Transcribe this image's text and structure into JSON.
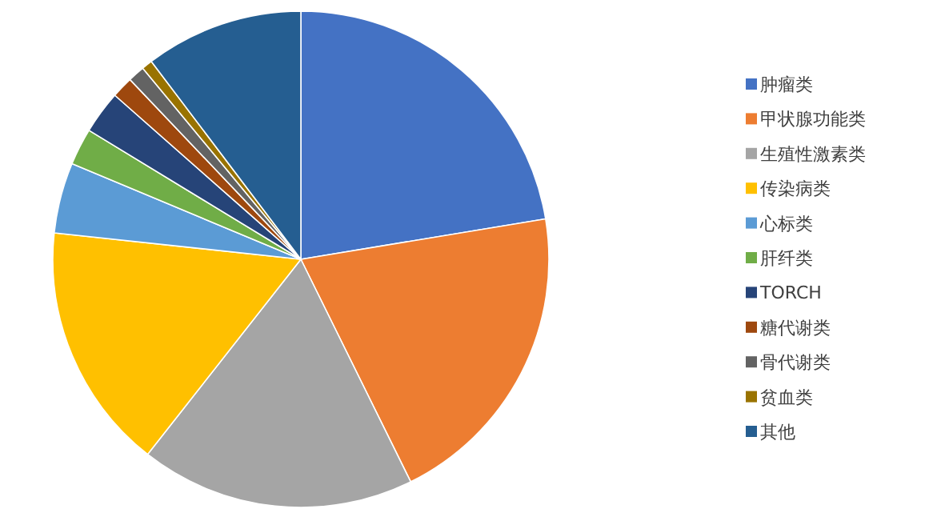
{
  "chart_data": {
    "type": "pie",
    "categories": [
      "肿瘤类",
      "甲状腺功能类",
      "生殖性激素类",
      "传染病类",
      "心标类",
      "肝纤类",
      "TORCH",
      "糖代谢类",
      "骨代谢类",
      "贫血类",
      "其他"
    ],
    "values": [
      22.4,
      20.3,
      17.9,
      16.1,
      4.6,
      2.4,
      2.8,
      1.4,
      1.1,
      0.7,
      10.3
    ],
    "colors": [
      "#4472c4",
      "#ed7d31",
      "#a5a5a5",
      "#ffc000",
      "#5b9bd5",
      "#70ad47",
      "#264478",
      "#9e480e",
      "#636363",
      "#997300",
      "#255e91"
    ],
    "legend": "right"
  }
}
